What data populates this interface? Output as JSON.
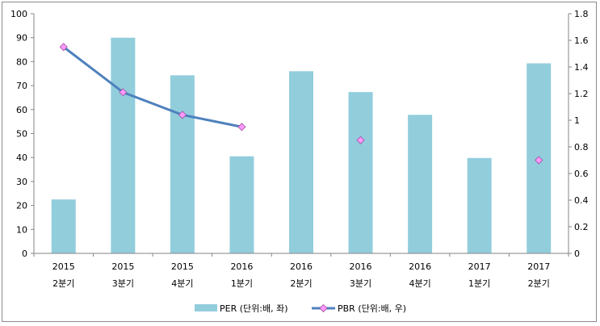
{
  "chart_data": {
    "type": "bar",
    "categories": [
      [
        "2015",
        "2분기"
      ],
      [
        "2015",
        "3분기"
      ],
      [
        "2015",
        "4분기"
      ],
      [
        "2016",
        "1분기"
      ],
      [
        "2016",
        "2분기"
      ],
      [
        "2016",
        "3분기"
      ],
      [
        "2016",
        "4분기"
      ],
      [
        "2017",
        "1분기"
      ],
      [
        "2017",
        "2분기"
      ]
    ],
    "series": [
      {
        "name": "PER (단위:배, 좌)",
        "type": "bar",
        "axis": "left",
        "color": "#92cddc",
        "values": [
          22.5,
          90,
          74.3,
          40.5,
          76,
          67.3,
          57.8,
          39.8,
          79.3
        ]
      },
      {
        "name": "PBR (단위:배, 우)",
        "type": "line",
        "axis": "right",
        "color": "#4f81bd",
        "marker_color": "#ff99ff",
        "values": [
          1.55,
          1.21,
          1.04,
          0.95,
          null,
          0.85,
          null,
          null,
          0.7
        ]
      }
    ],
    "y_left": {
      "lim": [
        0,
        100
      ],
      "ticks": [
        "0",
        "10",
        "20",
        "30",
        "40",
        "50",
        "60",
        "70",
        "80",
        "90",
        "100"
      ]
    },
    "y_right": {
      "lim": [
        0,
        1.8
      ],
      "ticks": [
        "0",
        "0.2",
        "0.4",
        "0.6",
        "0.8",
        "1",
        "1.2",
        "1.4",
        "1.6",
        "1.8"
      ]
    },
    "grid": false,
    "legend_position": "bottom",
    "line_connected_points": 4
  }
}
